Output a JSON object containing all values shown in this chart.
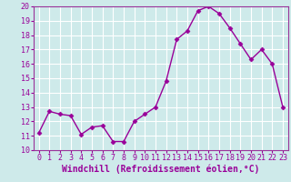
{
  "x": [
    0,
    1,
    2,
    3,
    4,
    5,
    6,
    7,
    8,
    9,
    10,
    11,
    12,
    13,
    14,
    15,
    16,
    17,
    18,
    19,
    20,
    21,
    22,
    23
  ],
  "y": [
    11.2,
    12.7,
    12.5,
    12.4,
    11.1,
    11.6,
    11.7,
    10.6,
    10.6,
    12.0,
    12.5,
    13.0,
    14.8,
    17.7,
    18.3,
    19.7,
    20.0,
    19.5,
    18.5,
    17.4,
    16.3,
    17.0,
    16.0,
    13.0
  ],
  "line_color": "#990099",
  "marker": "D",
  "marker_size": 2.5,
  "line_width": 1.0,
  "xlabel": "Windchill (Refroidissement éolien,°C)",
  "xlabel_fontsize": 7,
  "ylim": [
    10,
    20
  ],
  "yticks": [
    10,
    11,
    12,
    13,
    14,
    15,
    16,
    17,
    18,
    19,
    20
  ],
  "xticks": [
    0,
    1,
    2,
    3,
    4,
    5,
    6,
    7,
    8,
    9,
    10,
    11,
    12,
    13,
    14,
    15,
    16,
    17,
    18,
    19,
    20,
    21,
    22,
    23
  ],
  "tick_fontsize": 6,
  "background_color": "#ceeaea",
  "grid_color": "#ffffff",
  "spine_color": "#993399"
}
